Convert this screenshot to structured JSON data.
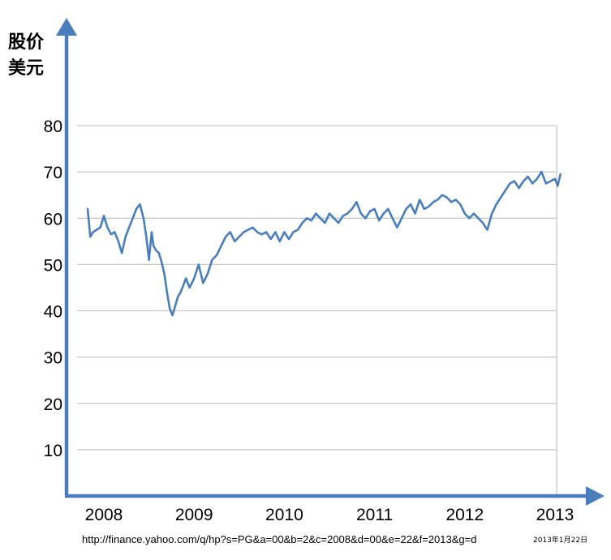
{
  "chart_data": {
    "type": "line",
    "ylabel_line1": "股价",
    "ylabel_line2": "美元",
    "yticks": [
      "10",
      "20",
      "30",
      "40",
      "50",
      "60",
      "70",
      "80"
    ],
    "xticks": [
      "2008",
      "2009",
      "2010",
      "2011",
      "2012",
      "2013"
    ],
    "ylim": [
      0,
      80
    ],
    "grid": true,
    "line_color": "#4a7ebb",
    "axis_color": "#4a7ebb",
    "series": [
      {
        "x": [
          2007.82,
          2007.85,
          2007.88,
          2007.92,
          2007.96,
          2008.0,
          2008.04,
          2008.08,
          2008.12,
          2008.16,
          2008.2,
          2008.24,
          2008.28,
          2008.32,
          2008.36,
          2008.4,
          2008.44,
          2008.47,
          2008.5,
          2008.53,
          2008.55,
          2008.58,
          2008.61,
          2008.64,
          2008.67,
          2008.7,
          2008.73,
          2008.76,
          2008.79,
          2008.82,
          2008.85,
          2008.88,
          2008.91,
          2008.95,
          2009.0,
          2009.05,
          2009.1,
          2009.15,
          2009.2,
          2009.25,
          2009.3,
          2009.35,
          2009.4,
          2009.45,
          2009.5,
          2009.55,
          2009.6,
          2009.65,
          2009.7,
          2009.75,
          2009.8,
          2009.85,
          2009.9,
          2009.95,
          2010.0,
          2010.05,
          2010.1,
          2010.15,
          2010.2,
          2010.25,
          2010.3,
          2010.35,
          2010.4,
          2010.45,
          2010.5,
          2010.55,
          2010.6,
          2010.65,
          2010.7,
          2010.75,
          2010.8,
          2010.85,
          2010.9,
          2010.95,
          2011.0,
          2011.05,
          2011.1,
          2011.15,
          2011.2,
          2011.25,
          2011.3,
          2011.35,
          2011.4,
          2011.45,
          2011.5,
          2011.55,
          2011.6,
          2011.65,
          2011.7,
          2011.75,
          2011.8,
          2011.85,
          2011.9,
          2011.95,
          2012.0,
          2012.05,
          2012.1,
          2012.15,
          2012.2,
          2012.25,
          2012.3,
          2012.35,
          2012.4,
          2012.45,
          2012.5,
          2012.55,
          2012.6,
          2012.65,
          2012.7,
          2012.75,
          2012.8,
          2012.85,
          2012.9,
          2012.95,
          2013.0,
          2013.03,
          2013.06
        ],
        "values": [
          62,
          56,
          57,
          57.5,
          58,
          60.5,
          58,
          56.5,
          57,
          55,
          52.5,
          56,
          58,
          60,
          62,
          63,
          60,
          56,
          51,
          57,
          54,
          53,
          52.5,
          50.5,
          48,
          44,
          40.5,
          39,
          41,
          43,
          44,
          45.5,
          47,
          45,
          47,
          50,
          46,
          48,
          51,
          52,
          54,
          56,
          57,
          55,
          56,
          57,
          57.5,
          58,
          57,
          56.5,
          57,
          55.5,
          57,
          55,
          57,
          55.5,
          57,
          57.5,
          59,
          60,
          59.5,
          61,
          60,
          59,
          61,
          60,
          59,
          60.5,
          61,
          62,
          63.5,
          61,
          60,
          61.5,
          62,
          59.5,
          61,
          62,
          60,
          58,
          60,
          62,
          63,
          61,
          64,
          62,
          62.5,
          63.5,
          64,
          65,
          64.5,
          63.5,
          64,
          63,
          61,
          60,
          61,
          60,
          59,
          57.5,
          61,
          63,
          64.5,
          66,
          67.5,
          68,
          66.5,
          68,
          69,
          67.5,
          68.5,
          70,
          67.5,
          68,
          68.5,
          67,
          69.5
        ]
      }
    ]
  },
  "footer": {
    "source_url": "http://finance.yahoo.com/q/hp?s=PG&a=00&b=2&c=2008&d=00&e=22&f=2013&g=d",
    "date": "2013年1月22日"
  }
}
